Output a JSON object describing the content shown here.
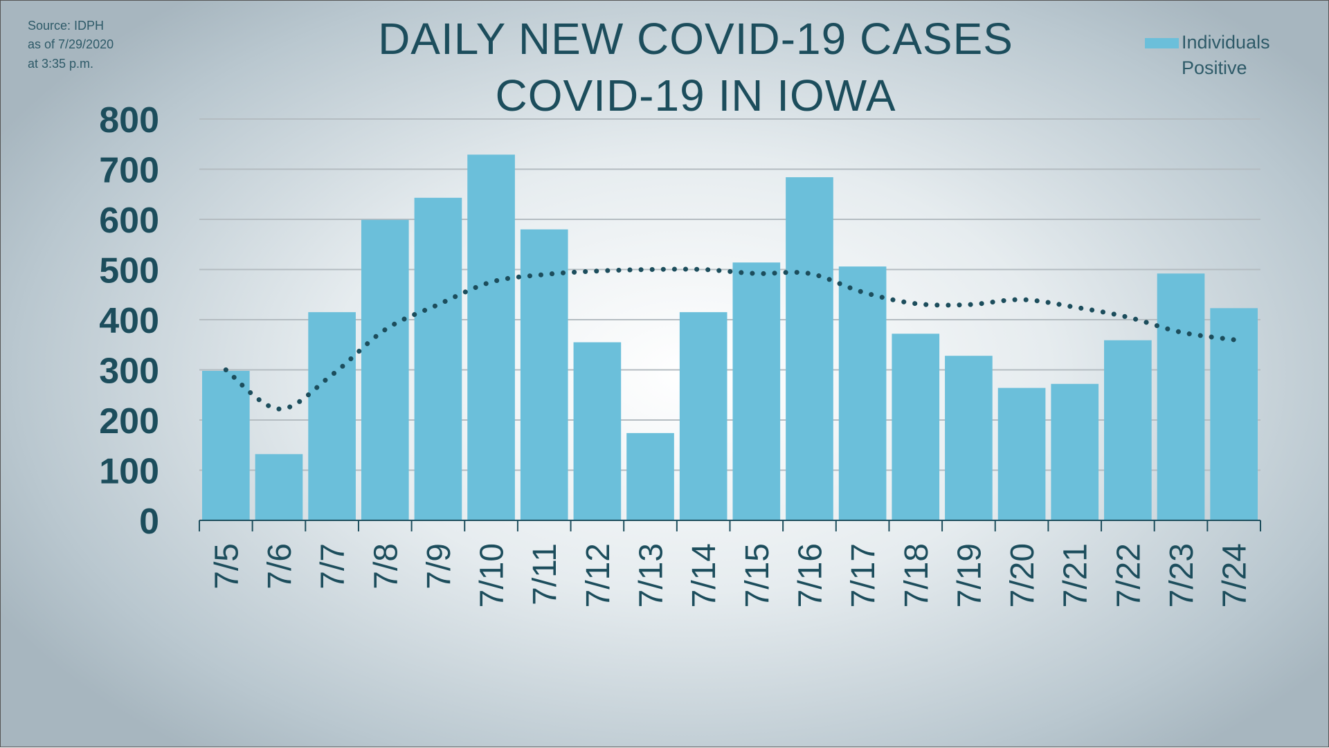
{
  "source_note": [
    "Source: IDPH",
    "as of 7/29/2020",
    "at 3:35 p.m."
  ],
  "colors": {
    "bar": "#6bbfda",
    "text": "#1c4d5c",
    "grid": "#b4bcc1",
    "trend": "#1c4d5c"
  },
  "chart_data": {
    "type": "bar",
    "title": [
      "DAILY NEW COVID-19 CASES",
      "COVID-19 IN IOWA"
    ],
    "xlabel": "",
    "ylabel": "",
    "categories": [
      "7/5",
      "7/6",
      "7/7",
      "7/8",
      "7/9",
      "7/10",
      "7/11",
      "7/12",
      "7/13",
      "7/14",
      "7/15",
      "7/16",
      "7/17",
      "7/18",
      "7/19",
      "7/20",
      "7/21",
      "7/22",
      "7/23",
      "7/24"
    ],
    "series": [
      {
        "name": "Individuals Positive",
        "values": [
          298,
          132,
          415,
          599,
          643,
          729,
          580,
          355,
          174,
          415,
          514,
          684,
          506,
          372,
          328,
          264,
          272,
          359,
          492,
          423
        ]
      }
    ],
    "trendline": {
      "style": "dotted",
      "values": [
        300,
        222,
        290,
        380,
        430,
        475,
        490,
        497,
        500,
        500,
        492,
        492,
        455,
        432,
        430,
        440,
        425,
        405,
        375,
        360
      ]
    },
    "yticks": [
      "0",
      "100",
      "200",
      "300",
      "400",
      "500",
      "600",
      "700",
      "800"
    ],
    "ylim": [
      0,
      800
    ],
    "grid": true,
    "legend": {
      "position": "top-right",
      "entries": [
        "Individuals",
        "Positive"
      ]
    }
  }
}
